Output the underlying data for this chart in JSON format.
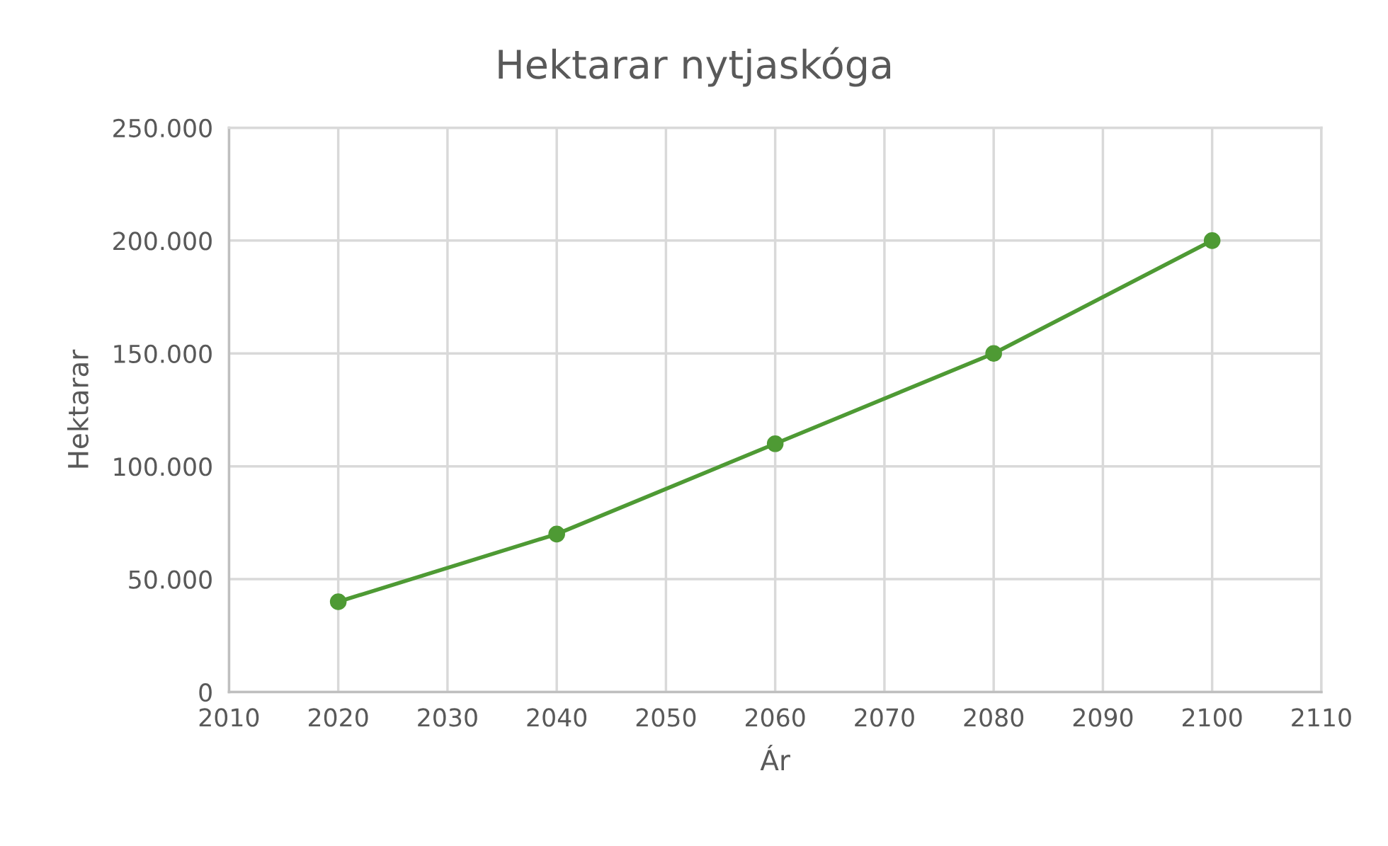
{
  "chart_data": {
    "type": "line",
    "title": "Hektarar nytjaskóga",
    "xlabel": "Ár",
    "ylabel": "Hektarar",
    "x": [
      2020,
      2040,
      2060,
      2080,
      2100
    ],
    "series": [
      {
        "color": "#4e9a34",
        "values": [
          40000,
          70000,
          110000,
          150000,
          200000
        ]
      }
    ],
    "xlim": [
      2010,
      2110
    ],
    "xticks": [
      2010,
      2020,
      2030,
      2040,
      2050,
      2060,
      2070,
      2080,
      2090,
      2100,
      2110
    ],
    "ylim": [
      0,
      250000
    ],
    "yticks": [
      0,
      {
        "value": 50000,
        "label": "50.000"
      },
      {
        "value": 100000,
        "label": "100.000"
      },
      {
        "value": 150000,
        "label": "150.000"
      },
      {
        "value": 200000,
        "label": "200.000"
      },
      {
        "value": 250000,
        "label": "250.000"
      }
    ],
    "grid": true,
    "marker": "circle",
    "line_style": "solid"
  }
}
